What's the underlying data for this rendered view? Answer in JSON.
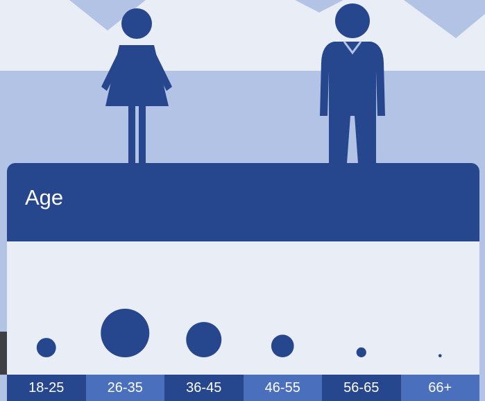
{
  "card": {
    "title": "Age"
  },
  "colors": {
    "primary": "#26478e",
    "secondary": "#4a70bd",
    "background": "#b3c3e6",
    "panel": "#e8edf6"
  },
  "icons": {
    "female": "female-person-icon",
    "male": "male-person-icon"
  },
  "chart_data": {
    "type": "bubble",
    "title": "Age",
    "categories": [
      "18-25",
      "26-35",
      "36-45",
      "46-55",
      "56-65",
      "66+"
    ],
    "values": [
      5.4,
      34,
      18,
      7.4,
      1.4,
      0.15
    ],
    "value_encoding": "bubble area (relative)",
    "bubble_color": "#26478e"
  }
}
